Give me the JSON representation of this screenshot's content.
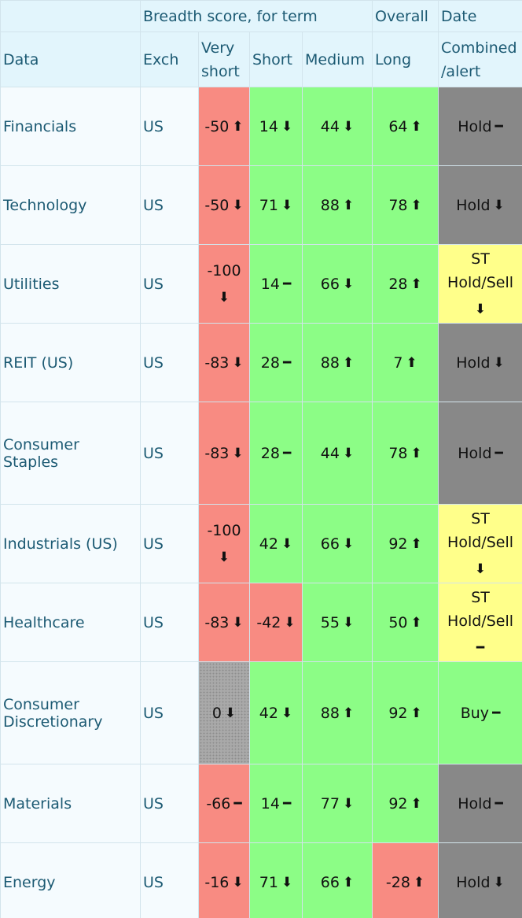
{
  "table": {
    "header_top": [
      "Breadth score, for term",
      "Overall",
      "Date"
    ],
    "header": [
      "Data",
      "Exch",
      "Very short",
      "Short",
      "Medium",
      "Long",
      "Combined /alert"
    ],
    "rows": [
      {
        "data": "Financials",
        "exch": "US",
        "cells": [
          {
            "value": -50,
            "arrow": "⬆",
            "color": "#f88b82"
          },
          {
            "value": 14,
            "arrow": "⬇",
            "color": "#8cfd86"
          },
          {
            "value": 44,
            "arrow": "⬇",
            "color": "#8cfd86"
          },
          {
            "value": 64,
            "arrow": "⬆",
            "color": "#8cfd86"
          }
        ],
        "alert": {
          "text": "Hold",
          "arrow": "━",
          "color": "#888888"
        }
      },
      {
        "data": "Technology",
        "exch": "US",
        "cells": [
          {
            "value": -50,
            "arrow": "⬇",
            "color": "#f88b82"
          },
          {
            "value": 71,
            "arrow": "⬇",
            "color": "#8cfd86"
          },
          {
            "value": 88,
            "arrow": "⬆",
            "color": "#8cfd86"
          },
          {
            "value": 78,
            "arrow": "⬆",
            "color": "#8cfd86"
          }
        ],
        "alert": {
          "text": "Hold",
          "arrow": "⬇",
          "color": "#888888"
        }
      },
      {
        "data": "Utilities",
        "exch": "US",
        "cells": [
          {
            "value": -100,
            "arrow": "⬇",
            "color": "#f88b82"
          },
          {
            "value": 14,
            "arrow": "━",
            "color": "#8cfd86"
          },
          {
            "value": 66,
            "arrow": "⬇",
            "color": "#8cfd86"
          },
          {
            "value": 28,
            "arrow": "⬆",
            "color": "#8cfd86"
          }
        ],
        "alert": {
          "text": "ST Hold/Sell",
          "arrow": "⬇",
          "color": "#ffff8a"
        }
      },
      {
        "data": "REIT (US)",
        "exch": "US",
        "cells": [
          {
            "value": -83,
            "arrow": "⬇",
            "color": "#f88b82"
          },
          {
            "value": 28,
            "arrow": "━",
            "color": "#8cfd86"
          },
          {
            "value": 88,
            "arrow": "⬆",
            "color": "#8cfd86"
          },
          {
            "value": 7,
            "arrow": "⬆",
            "color": "#8cfd86"
          }
        ],
        "alert": {
          "text": "Hold",
          "arrow": "⬇",
          "color": "#888888"
        }
      },
      {
        "data": "Consumer Staples",
        "exch": "US",
        "cells": [
          {
            "value": -83,
            "arrow": "⬇",
            "color": "#f88b82"
          },
          {
            "value": 28,
            "arrow": "━",
            "color": "#8cfd86"
          },
          {
            "value": 44,
            "arrow": "⬇",
            "color": "#8cfd86"
          },
          {
            "value": 78,
            "arrow": "⬆",
            "color": "#8cfd86"
          }
        ],
        "alert": {
          "text": "Hold",
          "arrow": "━",
          "color": "#888888"
        }
      },
      {
        "data": "Industrials (US)",
        "exch": "US",
        "cells": [
          {
            "value": -100,
            "arrow": "⬇",
            "color": "#f88b82"
          },
          {
            "value": 42,
            "arrow": "⬇",
            "color": "#8cfd86"
          },
          {
            "value": 66,
            "arrow": "⬇",
            "color": "#8cfd86"
          },
          {
            "value": 92,
            "arrow": "⬆",
            "color": "#8cfd86"
          }
        ],
        "alert": {
          "text": "ST Hold/Sell",
          "arrow": "⬇",
          "color": "#ffff8a"
        }
      },
      {
        "data": "Healthcare",
        "exch": "US",
        "cells": [
          {
            "value": -83,
            "arrow": "⬇",
            "color": "#f88b82"
          },
          {
            "value": -42,
            "arrow": "⬇",
            "color": "#f88b82"
          },
          {
            "value": 55,
            "arrow": "⬇",
            "color": "#8cfd86"
          },
          {
            "value": 50,
            "arrow": "⬆",
            "color": "#8cfd86"
          }
        ],
        "alert": {
          "text": "ST Hold/Sell",
          "arrow": "━",
          "color": "#ffff8a"
        }
      },
      {
        "data": "Consumer Discretionary",
        "exch": "US",
        "cells": [
          {
            "value": 0,
            "arrow": "⬇",
            "color": "#a9a9a9"
          },
          {
            "value": 42,
            "arrow": "⬇",
            "color": "#8cfd86"
          },
          {
            "value": 88,
            "arrow": "⬆",
            "color": "#8cfd86"
          },
          {
            "value": 92,
            "arrow": "⬆",
            "color": "#8cfd86"
          }
        ],
        "alert": {
          "text": "Buy",
          "arrow": "━",
          "color": "#8cfd86"
        }
      },
      {
        "data": "Materials",
        "exch": "US",
        "cells": [
          {
            "value": -66,
            "arrow": "━",
            "color": "#f88b82"
          },
          {
            "value": 14,
            "arrow": "━",
            "color": "#8cfd86"
          },
          {
            "value": 77,
            "arrow": "⬇",
            "color": "#8cfd86"
          },
          {
            "value": 92,
            "arrow": "⬆",
            "color": "#8cfd86"
          }
        ],
        "alert": {
          "text": "Hold",
          "arrow": "━",
          "color": "#888888"
        }
      },
      {
        "data": "Energy",
        "exch": "US",
        "cells": [
          {
            "value": -16,
            "arrow": "⬇",
            "color": "#f88b82"
          },
          {
            "value": 71,
            "arrow": "⬇",
            "color": "#8cfd86"
          },
          {
            "value": 66,
            "arrow": "⬆",
            "color": "#8cfd86"
          },
          {
            "value": -28,
            "arrow": "⬆",
            "color": "#f88b82"
          }
        ],
        "alert": {
          "text": "Hold",
          "arrow": "⬇",
          "color": "#888888"
        }
      }
    ]
  }
}
